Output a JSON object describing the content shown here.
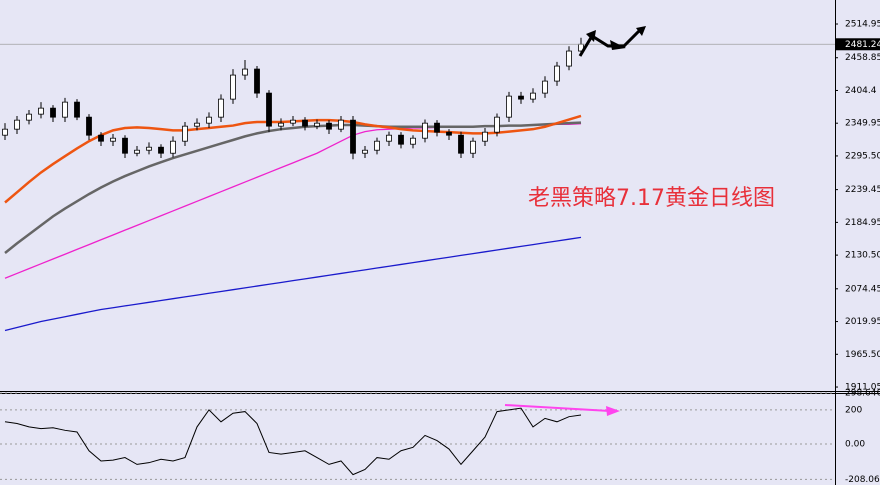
{
  "chart_data": [
    {
      "type": "candlestick",
      "annotation": "老黑策略7.17黄金日线图",
      "ylim": [
        1906.1,
        2554.9
      ],
      "yticks": [
        2514.95,
        2458.85,
        2404.4,
        2349.95,
        {
          "value": 2295.5,
          "label": "2295.50"
        },
        2239.45,
        2184.95,
        {
          "value": 2130.5,
          "label": "2130.50"
        },
        2074.45,
        2019.95,
        {
          "value": 1965.5,
          "label": "1965.50"
        },
        1911.05
      ],
      "last_price": 2481.24,
      "up_color": "#ffffff",
      "down_color": "#000000",
      "open": [
        2330,
        2340,
        2355,
        2365,
        2375,
        2360,
        2385,
        2360,
        2330,
        2320,
        2325,
        2300,
        2305,
        2310,
        2300,
        2320,
        2345,
        2350,
        2360,
        2390,
        2430,
        2440,
        2400,
        2345,
        2350,
        2355,
        2345,
        2350,
        2340,
        2355,
        2300,
        2305,
        2320,
        2330,
        2315,
        2325,
        2350,
        2335,
        2330,
        2300,
        2320,
        2335,
        2360,
        2395,
        2390,
        2400,
        2420,
        2445,
        2470
      ],
      "high": [
        2350,
        2362,
        2372,
        2385,
        2380,
        2392,
        2390,
        2365,
        2335,
        2332,
        2330,
        2312,
        2318,
        2315,
        2328,
        2352,
        2358,
        2368,
        2398,
        2440,
        2455,
        2445,
        2405,
        2358,
        2362,
        2360,
        2356,
        2355,
        2362,
        2362,
        2312,
        2326,
        2336,
        2335,
        2330,
        2356,
        2355,
        2340,
        2336,
        2326,
        2342,
        2366,
        2402,
        2402,
        2408,
        2428,
        2452,
        2478,
        2492
      ],
      "low": [
        2322,
        2332,
        2348,
        2358,
        2352,
        2352,
        2355,
        2322,
        2312,
        2312,
        2292,
        2295,
        2298,
        2292,
        2293,
        2312,
        2338,
        2342,
        2352,
        2382,
        2422,
        2392,
        2335,
        2338,
        2345,
        2338,
        2340,
        2332,
        2335,
        2290,
        2292,
        2298,
        2312,
        2308,
        2308,
        2318,
        2328,
        2322,
        2292,
        2292,
        2312,
        2328,
        2352,
        2382,
        2384,
        2392,
        2412,
        2438,
        2462
      ],
      "close": [
        2340,
        2355,
        2365,
        2375,
        2360,
        2385,
        2360,
        2330,
        2320,
        2325,
        2300,
        2305,
        2310,
        2300,
        2320,
        2345,
        2350,
        2360,
        2390,
        2430,
        2440,
        2400,
        2345,
        2350,
        2355,
        2345,
        2350,
        2340,
        2355,
        2300,
        2305,
        2320,
        2330,
        2315,
        2325,
        2350,
        2335,
        2330,
        2300,
        2320,
        2335,
        2360,
        2395,
        2390,
        2400,
        2420,
        2445,
        2470,
        2481.24
      ],
      "lines": [
        {
          "color": "#1a1acc",
          "values": [
            2005,
            2010,
            2015,
            2020,
            2024,
            2028,
            2032,
            2036,
            2040,
            2043,
            2046,
            2049,
            2052,
            2055,
            2058,
            2061,
            2064,
            2067,
            2070,
            2073,
            2076,
            2079,
            2082,
            2085,
            2088,
            2091,
            2094,
            2097,
            2100,
            2103,
            2106,
            2109,
            2112,
            2115,
            2118,
            2121,
            2124,
            2127,
            2130,
            2133,
            2136,
            2139,
            2142,
            2145,
            2148,
            2151,
            2154,
            2157,
            2160
          ]
        },
        {
          "color": "#ee22cc",
          "values": [
            2092,
            2100,
            2108,
            2116,
            2124,
            2132,
            2140,
            2148,
            2156,
            2164,
            2172,
            2180,
            2188,
            2196,
            2204,
            2212,
            2220,
            2228,
            2236,
            2244,
            2252,
            2260,
            2268,
            2276,
            2284,
            2292,
            2300,
            2310,
            2320,
            2330,
            2336,
            2339,
            2340,
            2341,
            2342,
            2342,
            2343,
            2343,
            2344,
            2344,
            2345,
            2345,
            2346,
            2346,
            2347,
            2347,
            2348,
            2348,
            2349
          ]
        },
        {
          "color": "#666666",
          "values": [
            2134,
            2150,
            2165,
            2180,
            2195,
            2208,
            2220,
            2232,
            2243,
            2253,
            2262,
            2270,
            2278,
            2285,
            2292,
            2298,
            2304,
            2310,
            2316,
            2322,
            2328,
            2333,
            2337,
            2340,
            2342,
            2344,
            2345,
            2346,
            2347,
            2347,
            2346,
            2345,
            2344,
            2344,
            2344,
            2344,
            2344,
            2344,
            2344,
            2344,
            2345,
            2345,
            2346,
            2346,
            2347,
            2348,
            2349,
            2350,
            2351
          ]
        },
        {
          "color": "#ee5511",
          "values": [
            2218,
            2235,
            2252,
            2268,
            2282,
            2295,
            2308,
            2320,
            2330,
            2338,
            2342,
            2343,
            2342,
            2340,
            2338,
            2338,
            2340,
            2342,
            2344,
            2346,
            2350,
            2352,
            2352,
            2352,
            2353,
            2354,
            2355,
            2355,
            2354,
            2352,
            2348,
            2345,
            2343,
            2340,
            2338,
            2337,
            2336,
            2335,
            2334,
            2333,
            2333,
            2334,
            2336,
            2338,
            2340,
            2344,
            2350,
            2356,
            2362
          ]
        }
      ]
    },
    {
      "type": "line",
      "color": "#000000",
      "ylim": [
        -241,
        299
      ],
      "yticks": [
        298.646,
        200,
        {
          "value": 0,
          "label": "0.00"
        },
        {
          "value": -208.06,
          "label": "-208.060"
        }
      ],
      "grid": true,
      "values": [
        130,
        120,
        100,
        90,
        95,
        80,
        70,
        -40,
        -100,
        -95,
        -80,
        -120,
        -110,
        -90,
        -100,
        -80,
        100,
        200,
        130,
        180,
        190,
        120,
        -50,
        -60,
        -50,
        -40,
        -80,
        -120,
        -100,
        -180,
        -150,
        -80,
        -90,
        -40,
        -20,
        50,
        20,
        -30,
        -120,
        -40,
        40,
        190,
        200,
        210,
        100,
        150,
        130,
        160,
        170
      ]
    }
  ]
}
